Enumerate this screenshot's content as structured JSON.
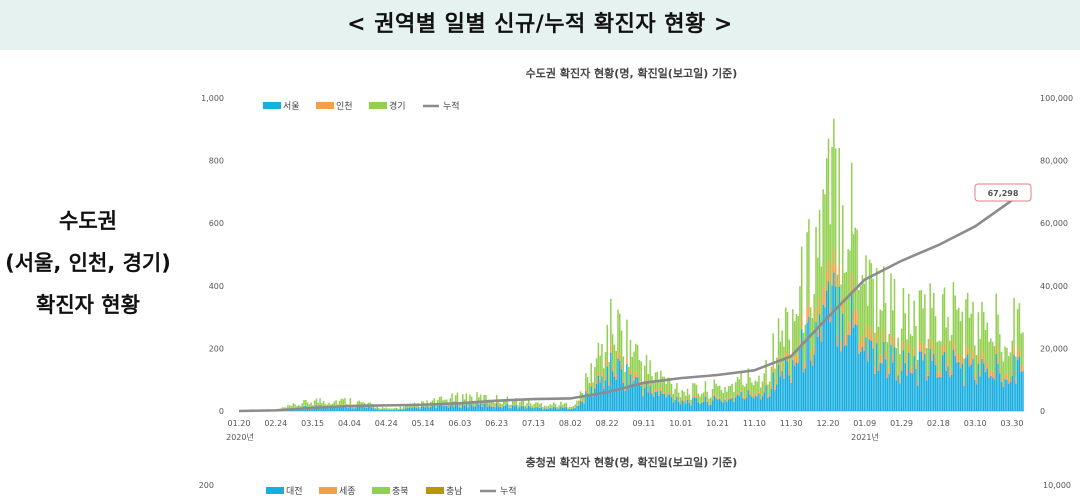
{
  "header": {
    "title": "< 권역별 일별 신규/누적 확진자 현황 >"
  },
  "side": {
    "line1": "수도권",
    "line2": "(서울, 인천, 경기)",
    "line3": "확진자 현황"
  },
  "chart_data": [
    {
      "type": "bar",
      "stacked": true,
      "title": "수도권 확진자 현황(명, 확진일(보고일) 기준)",
      "legend": [
        "서울",
        "인천",
        "경기",
        "누적"
      ],
      "legend_position": "top-left",
      "colors": {
        "서울": "#1aaee0",
        "인천": "#f4a046",
        "경기": "#92d050",
        "누적": "#8c8c8c"
      },
      "ylim": [
        0,
        1000
      ],
      "y_ticks": [
        "1,000",
        "800",
        "600",
        "400",
        "200",
        "0"
      ],
      "y2lim": [
        0,
        100000
      ],
      "y2_ticks": [
        "100,000",
        "80,000",
        "60,000",
        "40,000",
        "20,000",
        "0"
      ],
      "x_tick_labels": [
        "01.20",
        "02.24",
        "03.15",
        "04.04",
        "04.24",
        "05.14",
        "06.03",
        "06.23",
        "07.13",
        "08.02",
        "08.22",
        "09.11",
        "10.01",
        "10.21",
        "11.10",
        "11.30",
        "12.20",
        "01.09",
        "01.29",
        "02.18",
        "03.10",
        "03.30"
      ],
      "year_labels": [
        "2020년",
        "2021년"
      ],
      "annotation": "67,298",
      "grid": false,
      "series_summary": [
        {
          "name": "서울",
          "period": [
            [
              "01.20",
              0
            ],
            [
              "02.24",
              2
            ],
            [
              "03.15",
              15
            ],
            [
              "04.04",
              15
            ],
            [
              "04.24",
              3
            ],
            [
              "05.14",
              12
            ],
            [
              "06.03",
              20
            ],
            [
              "06.23",
              18
            ],
            [
              "07.13",
              10
            ],
            [
              "08.02",
              10
            ],
            [
              "08.22",
              140
            ],
            [
              "09.11",
              60
            ],
            [
              "10.01",
              30
            ],
            [
              "10.21",
              35
            ],
            [
              "11.10",
              60
            ],
            [
              "11.30",
              180
            ],
            [
              "12.20",
              350
            ],
            [
              "01.09",
              180
            ],
            [
              "01.29",
              130
            ],
            [
              "02.18",
              150
            ],
            [
              "03.10",
              120
            ],
            [
              "03.30",
              160
            ]
          ]
        },
        {
          "name": "인천",
          "period": [
            [
              "01.20",
              0
            ],
            [
              "02.24",
              0
            ],
            [
              "03.15",
              2
            ],
            [
              "04.04",
              2
            ],
            [
              "04.24",
              0
            ],
            [
              "05.14",
              3
            ],
            [
              "06.03",
              5
            ],
            [
              "06.23",
              3
            ],
            [
              "07.13",
              2
            ],
            [
              "08.02",
              2
            ],
            [
              "08.22",
              20
            ],
            [
              "09.11",
              10
            ],
            [
              "10.01",
              5
            ],
            [
              "10.21",
              5
            ],
            [
              "11.10",
              10
            ],
            [
              "11.30",
              30
            ],
            [
              "12.20",
              60
            ],
            [
              "01.09",
              30
            ],
            [
              "01.29",
              20
            ],
            [
              "02.18",
              25
            ],
            [
              "03.10",
              20
            ],
            [
              "03.30",
              25
            ]
          ]
        },
        {
          "name": "경기",
          "period": [
            [
              "01.20",
              0
            ],
            [
              "02.24",
              3
            ],
            [
              "03.15",
              15
            ],
            [
              "04.04",
              15
            ],
            [
              "04.24",
              3
            ],
            [
              "05.14",
              10
            ],
            [
              "06.03",
              20
            ],
            [
              "06.23",
              15
            ],
            [
              "07.13",
              10
            ],
            [
              "08.02",
              8
            ],
            [
              "08.22",
              110
            ],
            [
              "09.11",
              50
            ],
            [
              "10.01",
              25
            ],
            [
              "10.21",
              35
            ],
            [
              "11.10",
              50
            ],
            [
              "11.30",
              150
            ],
            [
              "12.20",
              330
            ],
            [
              "01.09",
              170
            ],
            [
              "01.29",
              110
            ],
            [
              "02.18",
              140
            ],
            [
              "03.10",
              110
            ],
            [
              "03.30",
              130
            ]
          ]
        },
        {
          "name": "누적",
          "period": [
            [
              "01.20",
              0
            ],
            [
              "02.24",
              200
            ],
            [
              "03.15",
              1000
            ],
            [
              "04.04",
              1600
            ],
            [
              "04.24",
              1800
            ],
            [
              "05.14",
              2000
            ],
            [
              "06.03",
              2500
            ],
            [
              "06.23",
              3300
            ],
            [
              "07.13",
              3800
            ],
            [
              "08.02",
              4000
            ],
            [
              "08.22",
              6000
            ],
            [
              "09.11",
              9000
            ],
            [
              "10.01",
              10500
            ],
            [
              "10.21",
              11500
            ],
            [
              "11.10",
              13000
            ],
            [
              "11.30",
              17500
            ],
            [
              "12.20",
              30000
            ],
            [
              "01.09",
              42000
            ],
            [
              "01.29",
              48000
            ],
            [
              "02.18",
              53000
            ],
            [
              "03.10",
              59000
            ],
            [
              "03.30",
              67298
            ]
          ]
        }
      ]
    },
    {
      "type": "bar",
      "stacked": true,
      "title": "충청권 확진자 현황(명, 확진일(보고일) 기준)",
      "legend": [
        "대전",
        "세종",
        "충북",
        "충남",
        "누적"
      ],
      "colors": {
        "대전": "#1aaee0",
        "세종": "#f4a046",
        "충북": "#92d050",
        "충남": "#b8960c",
        "누적": "#8c8c8c"
      },
      "y_ticks": [
        "200"
      ],
      "y2_ticks": [
        "10,000"
      ]
    }
  ]
}
